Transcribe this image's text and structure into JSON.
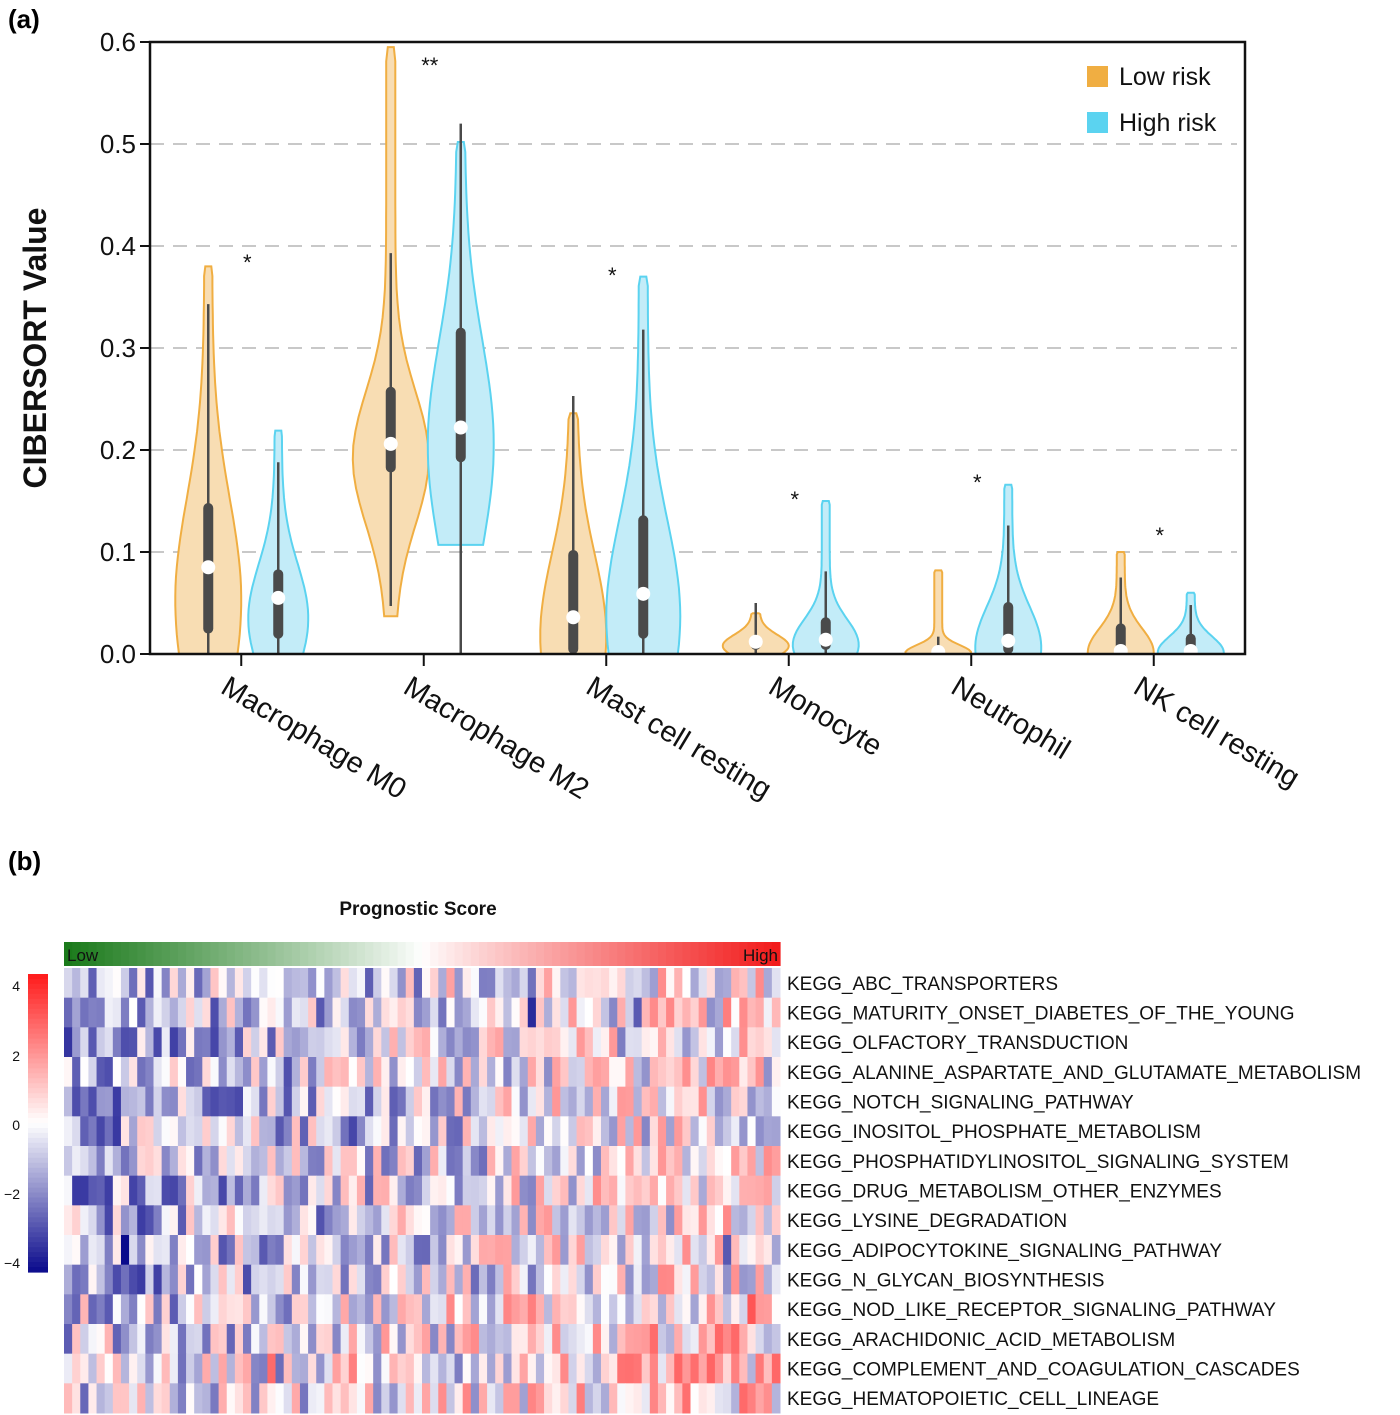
{
  "panels": {
    "a_label": "(a)",
    "b_label": "(b)"
  },
  "chart_data": [
    {
      "type": "violin",
      "panel": "a",
      "title": "",
      "xlabel": "",
      "ylabel": "CIBERSORT Value",
      "ylim": [
        0.0,
        0.6
      ],
      "yticks": [
        "0.0",
        "0.1",
        "0.2",
        "0.3",
        "0.4",
        "0.5",
        "0.6"
      ],
      "grid": "horizontal-dashed",
      "legend_position": "top-right",
      "categories": [
        "Macrophage M0",
        "Macrophage M2",
        "Mast cell resting",
        "Monocyte",
        "Neutrophil",
        "NK cell resting"
      ],
      "significance": [
        "*",
        "**",
        "*",
        "*",
        "*",
        "*"
      ],
      "series": [
        {
          "name": "Low risk",
          "color": "#F0AE42",
          "fill": "#F8DDB3",
          "stats": [
            {
              "min": 0.0,
              "max": 0.38,
              "whisker_low": 0.0,
              "whisker_high": 0.343,
              "q1": 0.02,
              "q3": 0.148,
              "median": 0.085
            },
            {
              "min": 0.037,
              "max": 0.595,
              "whisker_low": 0.047,
              "whisker_high": 0.393,
              "q1": 0.178,
              "q3": 0.262,
              "median": 0.206
            },
            {
              "min": 0.0,
              "max": 0.236,
              "whisker_low": 0.0,
              "whisker_high": 0.253,
              "q1": 0.0,
              "q3": 0.102,
              "median": 0.036
            },
            {
              "min": 0.0,
              "max": 0.04,
              "whisker_low": 0.0,
              "whisker_high": 0.05,
              "q1": 0.004,
              "q3": 0.018,
              "median": 0.012
            },
            {
              "min": 0.0,
              "max": 0.082,
              "whisker_low": 0.0,
              "whisker_high": 0.017,
              "q1": 0.0,
              "q3": 0.008,
              "median": 0.002
            },
            {
              "min": 0.0,
              "max": 0.1,
              "whisker_low": 0.0,
              "whisker_high": 0.075,
              "q1": 0.0,
              "q3": 0.03,
              "median": 0.003
            }
          ]
        },
        {
          "name": "High risk",
          "color": "#5BD3F0",
          "fill": "#C3ECF8",
          "stats": [
            {
              "min": 0.0,
              "max": 0.219,
              "whisker_low": 0.0,
              "whisker_high": 0.188,
              "q1": 0.015,
              "q3": 0.083,
              "median": 0.055
            },
            {
              "min": 0.107,
              "max": 0.502,
              "whisker_low": 0.0,
              "whisker_high": 0.52,
              "q1": 0.188,
              "q3": 0.32,
              "median": 0.222
            },
            {
              "min": 0.0,
              "max": 0.37,
              "whisker_low": 0.0,
              "whisker_high": 0.318,
              "q1": 0.015,
              "q3": 0.136,
              "median": 0.059
            },
            {
              "min": 0.0,
              "max": 0.15,
              "whisker_low": 0.0,
              "whisker_high": 0.081,
              "q1": 0.004,
              "q3": 0.036,
              "median": 0.014
            },
            {
              "min": 0.0,
              "max": 0.166,
              "whisker_low": 0.0,
              "whisker_high": 0.126,
              "q1": 0.0,
              "q3": 0.051,
              "median": 0.013
            },
            {
              "min": 0.0,
              "max": 0.06,
              "whisker_low": 0.0,
              "whisker_high": 0.048,
              "q1": 0.0,
              "q3": 0.02,
              "median": 0.003
            }
          ]
        }
      ]
    },
    {
      "type": "heatmap",
      "panel": "b",
      "title": "Prognostic Score",
      "annotation_bar": {
        "low_label": "Low",
        "high_label": "High",
        "low_color": "#1B7A1B",
        "mid_color": "#FFFFFF",
        "high_color": "#F21C1C"
      },
      "colorbar": {
        "ticks": [
          "4",
          "2",
          "0",
          "−2",
          "−4"
        ],
        "range": [
          -4,
          4
        ],
        "low_color": "#0A0A8C",
        "mid_color": "#FFFFFF",
        "high_color": "#FF1A1A"
      },
      "n_columns": 88,
      "rows": [
        "KEGG_ABC_TRANSPORTERS",
        "KEGG_MATURITY_ONSET_DIABETES_OF_THE_YOUNG",
        "KEGG_OLFACTORY_TRANSDUCTION",
        "KEGG_ALANINE_ASPARTATE_AND_GLUTAMATE_METABOLISM",
        "KEGG_NOTCH_SIGNALING_PATHWAY",
        "KEGG_INOSITOL_PHOSPHATE_METABOLISM",
        "KEGG_PHOSPHATIDYLINOSITOL_SIGNALING_SYSTEM",
        "KEGG_DRUG_METABOLISM_OTHER_ENZYMES",
        "KEGG_LYSINE_DEGRADATION",
        "KEGG_ADIPOCYTOKINE_SIGNALING_PATHWAY",
        "KEGG_N_GLYCAN_BIOSYNTHESIS",
        "KEGG_NOD_LIKE_RECEPTOR_SIGNALING_PATHWAY",
        "KEGG_ARACHIDONIC_ACID_METABOLISM",
        "KEGG_COMPLEMENT_AND_COAGULATION_CASCADES",
        "KEGG_HEMATOPOIETIC_CELL_LINEAGE"
      ],
      "row_trend": [
        -1,
        -1,
        -1,
        -1,
        -1,
        -1,
        -1,
        -1,
        -1,
        -1,
        -1,
        1,
        1,
        1,
        1
      ],
      "value_note": "z-scored pathway activity per sample, range approx -4 to 4; samples ordered by prognostic score low to high"
    }
  ]
}
